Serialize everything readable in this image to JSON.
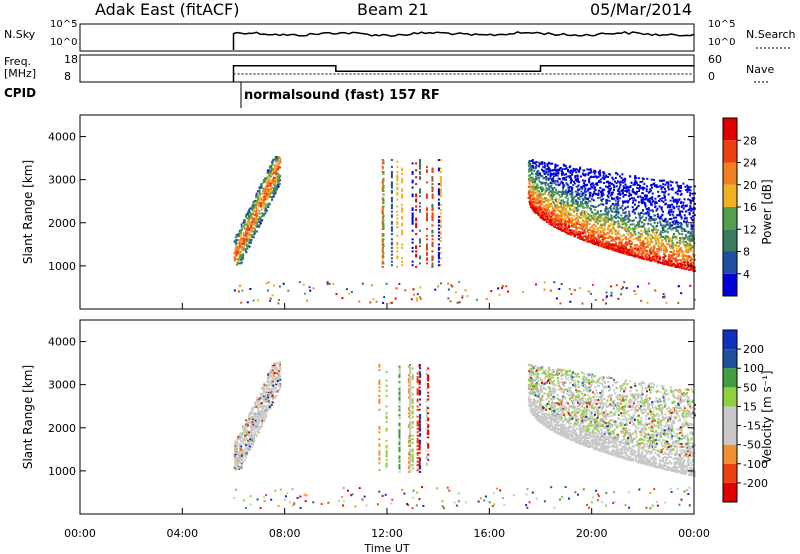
{
  "header": {
    "station": "Adak East (fitACF)",
    "beam": "Beam 21",
    "date": "05/Mar/2014"
  },
  "noise_panel": {
    "left_label": "N.Sky",
    "right_label": "N.Search",
    "left_ticks": [
      "10^5",
      "10^0"
    ],
    "right_ticks": [
      "10^5",
      "10^0"
    ]
  },
  "freq_panel": {
    "left_label_line1": "Freq.",
    "left_label_line2": "[MHz]",
    "left_ticks": [
      "18",
      "8"
    ],
    "right_label": "Nave",
    "right_ticks": [
      "60",
      "0"
    ]
  },
  "cpid": {
    "label": "CPID",
    "value": "normalsound (fast) 157 RF"
  },
  "x_axis": {
    "label": "Time UT",
    "ticks": [
      "00:00",
      "04:00",
      "08:00",
      "12:00",
      "16:00",
      "20:00",
      "00:00"
    ]
  },
  "colors": {
    "power_scale": [
      "#0000dd",
      "#1f4fa0",
      "#3a7a60",
      "#50a050",
      "#f0b020",
      "#f08020",
      "#f04010",
      "#e00000"
    ],
    "velocity_scale": [
      "#e00000",
      "#f04010",
      "#f09030",
      "#c8c8c8",
      "#c8c8c8",
      "#90d040",
      "#40a040",
      "#2050a0",
      "#1030c0"
    ]
  },
  "chart_data": [
    {
      "type": "heatmap",
      "name": "power",
      "title": "",
      "ylabel": "Slant Range [km]",
      "xlabel": "Time UT",
      "xlim": [
        0,
        24
      ],
      "ylim": [
        0,
        4500
      ],
      "y_ticks": [
        1000,
        2000,
        3000,
        4000
      ],
      "colorbar": {
        "label": "Power [dB]",
        "ticks": [
          "4",
          "8",
          "12",
          "16",
          "20",
          "24",
          "28"
        ],
        "range": [
          0,
          30
        ]
      },
      "echo_regions": [
        {
          "t_start": 6.0,
          "t_end": 7.8,
          "r_min": 1100,
          "r_max": 3500,
          "note": "diagonal echo band"
        },
        {
          "t_start": 11.5,
          "t_end": 14.2,
          "r_min": 1000,
          "r_max": 3500,
          "note": "sparse vertical streaks"
        },
        {
          "t_start": 17.5,
          "t_end": 24.0,
          "r_min": 800,
          "r_max": 3500,
          "note": "curved range-decreasing band"
        }
      ]
    },
    {
      "type": "heatmap",
      "name": "velocity",
      "title": "",
      "ylabel": "Slant Range [km]",
      "xlabel": "Time UT",
      "xlim": [
        0,
        24
      ],
      "ylim": [
        0,
        4500
      ],
      "y_ticks": [
        1000,
        2000,
        3000,
        4000
      ],
      "colorbar": {
        "label": "Velocity [m s⁻¹]",
        "ticks": [
          "200",
          "100",
          "50",
          "15",
          "-15",
          "-50",
          "-100",
          "-200"
        ],
        "range": [
          -300,
          300
        ]
      },
      "echo_regions": [
        {
          "t_start": 6.0,
          "t_end": 7.8,
          "r_min": 1100,
          "r_max": 3500,
          "note": "mostly ground scatter"
        },
        {
          "t_start": 11.5,
          "t_end": 14.2,
          "r_min": 1000,
          "r_max": 3500,
          "note": "sparse vertical streaks"
        },
        {
          "t_start": 17.5,
          "t_end": 24.0,
          "r_min": 800,
          "r_max": 3500,
          "note": "ground scatter band"
        }
      ]
    },
    {
      "type": "line",
      "name": "frequency",
      "x": [
        6.0,
        10.0,
        10.0,
        18.0,
        18.0,
        24.0
      ],
      "y": [
        14,
        14,
        12,
        12,
        14,
        14
      ],
      "ylim": [
        8,
        18
      ]
    }
  ]
}
